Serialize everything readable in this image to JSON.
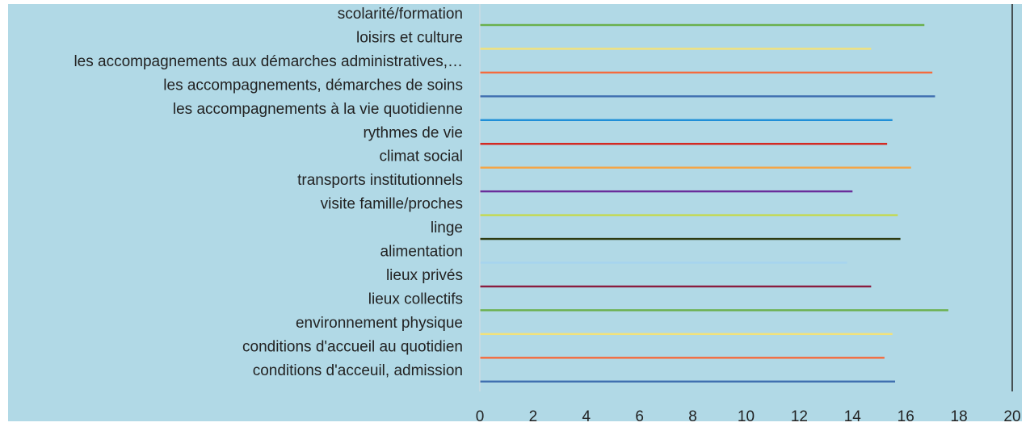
{
  "chart_data": {
    "type": "bar",
    "orientation": "horizontal",
    "title": "",
    "xlabel": "",
    "ylabel": "",
    "xlim": [
      0,
      20
    ],
    "x_ticks": [
      "0",
      "2",
      "4",
      "6",
      "8",
      "10",
      "12",
      "14",
      "16",
      "18",
      "20"
    ],
    "grid": false,
    "legend": "none",
    "categories": [
      "scolarité/formation",
      "loisirs et culture",
      "les accompagnements aux démarches administratives,…",
      "les accompagnements, démarches de soins",
      "les accompagnements à la vie quotidienne",
      "rythmes de vie",
      "climat social",
      "transports institutionnels",
      "visite famille/proches",
      "linge",
      "alimentation",
      "lieux privés",
      "lieux collectifs",
      "environnement physique",
      "conditions d'accueil au quotidien",
      "conditions d'acceuil, admission"
    ],
    "values": [
      16.7,
      14.7,
      17.0,
      17.1,
      15.5,
      15.3,
      16.2,
      14.0,
      15.7,
      15.8,
      13.8,
      14.7,
      17.6,
      15.5,
      15.2,
      15.6
    ],
    "colors": [
      "#6ab04c",
      "#f2e27a",
      "#f46b3e",
      "#3f6fb0",
      "#1f8fd8",
      "#d4241c",
      "#f5a546",
      "#6a2e9a",
      "#c4d94f",
      "#2e3b12",
      "#a6d4ee",
      "#8a1c3f",
      "#6ab04c",
      "#f2e27a",
      "#f46b3e",
      "#3f6fb0"
    ],
    "background_color": "#b1d9e6",
    "axis_color": "#333333"
  }
}
